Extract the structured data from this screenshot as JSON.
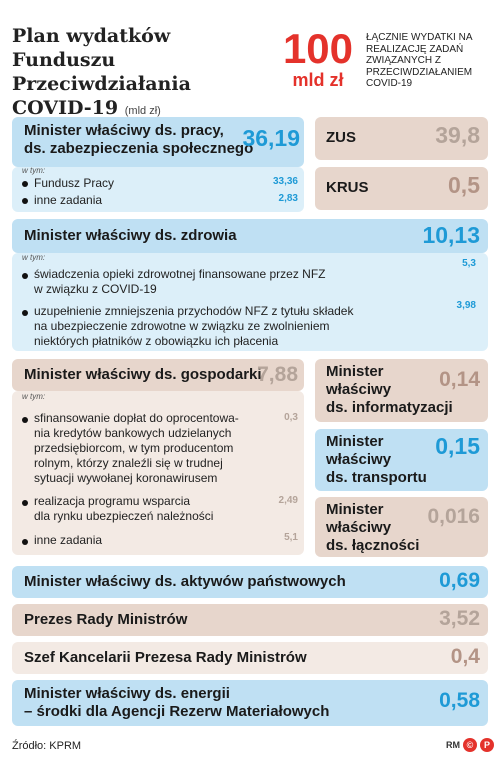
{
  "header": {
    "title_line1": "Plan wydatków Funduszu",
    "title_line2": "Przeciwdziałania",
    "title_line3": "COVID-19",
    "unit": "(mld zł)",
    "total_value": "100",
    "total_unit": "mld zł",
    "total_desc": "ŁĄCZNIE WYDATKI NA REALIZACJĘ ZADAŃ ZWIĄZANYCH Z PRZECIWDZIAŁANIEM COVID-19"
  },
  "in_that_label": "w tym:",
  "colors": {
    "blue_box": "#bfe0f3",
    "blue_box_light": "#dceff9",
    "brown_box": "#e7d6cc",
    "brown_box_light": "#f3eae4",
    "blue_value": "#1e9ad6",
    "brown_value": "#b39486",
    "accent_red": "#e4322b"
  },
  "chart_data": {
    "type": "table",
    "title": "Plan wydatków Funduszu Przeciwdziałania COVID-19",
    "unit": "mld zł",
    "total": 100,
    "items": [
      {
        "name": "Minister właściwy ds. pracy, zabezpieczenia społecznego",
        "line1": "Minister właściwy ds. pracy,",
        "line2": "ds. zabezpieczenia społecznego",
        "value": "36,19",
        "sub": [
          {
            "name": "Fundusz Pracy",
            "value": "33,36"
          },
          {
            "name": "inne zadania",
            "value": "2,83"
          }
        ]
      },
      {
        "name": "ZUS",
        "value": "39,8"
      },
      {
        "name": "KRUS",
        "value": "0,5"
      },
      {
        "name": "Minister właściwy ds. zdrowia",
        "value": "10,13",
        "sub": [
          {
            "line1": "świadczenia opieki zdrowotnej finansowane przez NFZ",
            "line2": "w związku z COVID-19",
            "value": "5,3"
          },
          {
            "line1": "uzupełnienie zmniejszenia przychodów NFZ z tytułu składek",
            "line2": "na ubezpieczenie zdrowotne w związku ze zwolnieniem",
            "line3": "niektórych płatników z obowiązku ich płacenia",
            "value": "3,98"
          }
        ]
      },
      {
        "name": "Minister właściwy ds. gospodarki",
        "value": "7,88",
        "sub": [
          {
            "line1": "sfinansowanie dopłat do oprocentowa-",
            "line2": "nia kredytów bankowych udzielanych",
            "line3": "przedsiębiorcom, w tym producentom",
            "line4": "rolnym, którzy znaleźli się w trudnej",
            "line5": "sytuacji wywołanej koronawirusem",
            "value": "0,3"
          },
          {
            "line1": "realizacja programu wsparcia",
            "line2": "dla rynku ubezpieczeń należności",
            "value": "2,49"
          },
          {
            "line1": "inne zadania",
            "value": "5,1"
          }
        ]
      },
      {
        "line1": "Minister",
        "line2": "właściwy",
        "line3": "ds. informatyzacji",
        "value": "0,14"
      },
      {
        "line1": "Minister",
        "line2": "właściwy",
        "line3": "ds. transportu",
        "value": "0,15"
      },
      {
        "line1": "Minister",
        "line2": "właściwy",
        "line3": "ds. łączności",
        "value": "0,016"
      },
      {
        "name": "Minister właściwy ds. aktywów państwowych",
        "value": "0,69"
      },
      {
        "name": "Prezes Rady Ministrów",
        "value": "3,52"
      },
      {
        "name": "Szef Kancelarii Prezesa Rady Ministrów",
        "value": "0,4"
      },
      {
        "line1": "Minister właściwy ds. energii",
        "line2": "– środki dla Agencji Rezerw Materiałowych",
        "value": "0,58"
      }
    ]
  },
  "footer": {
    "source": "Źródło: KPRM",
    "logo_text": "RM"
  }
}
